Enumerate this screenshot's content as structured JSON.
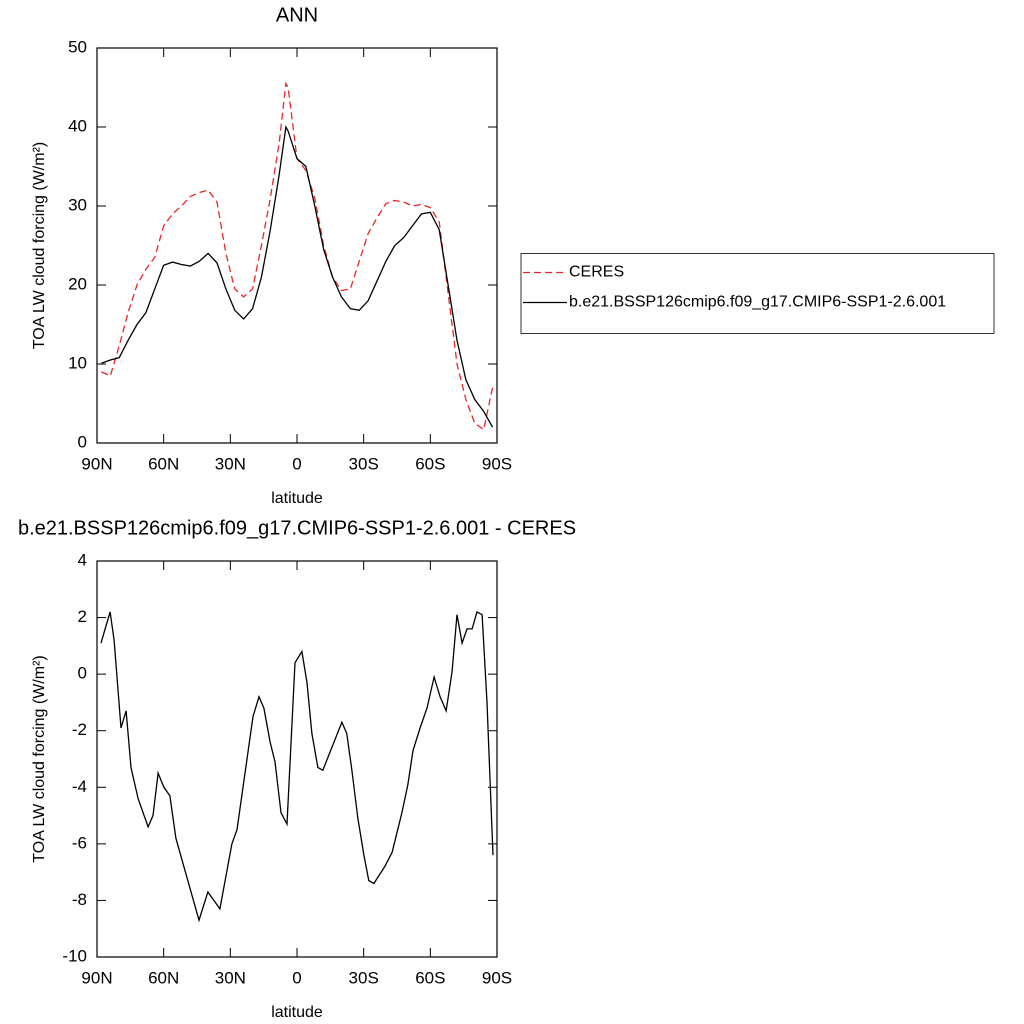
{
  "chart_data": [
    {
      "type": "line",
      "title": "ANN",
      "x_label": "latitude",
      "y_label": "TOA LW cloud forcing (W/m²)",
      "x": [
        88,
        84,
        80,
        76,
        72,
        68,
        64,
        60,
        56,
        52,
        48,
        44,
        40,
        36,
        32,
        28,
        24,
        20,
        16,
        12,
        8,
        5,
        4,
        0,
        -4,
        -8,
        -12,
        -16,
        -20,
        -24,
        -28,
        -32,
        -36,
        -40,
        -44,
        -48,
        -52,
        -56,
        -60,
        -64,
        -68,
        -72,
        -76,
        -80,
        -84,
        -88
      ],
      "series": [
        {
          "name": "CERES",
          "color": "#e8262a",
          "style": "dashed",
          "values": [
            9,
            8.5,
            12.3,
            16.5,
            20,
            22,
            23.5,
            27.5,
            29,
            30,
            31.2,
            31.7,
            32,
            30.5,
            24,
            19.5,
            18.5,
            19.5,
            25,
            31,
            38,
            45.5,
            45,
            36,
            34.5,
            31,
            25,
            21,
            19.3,
            19.5,
            23,
            26.5,
            28.5,
            30.3,
            30.7,
            30.5,
            30,
            30.2,
            29.8,
            28,
            19,
            10,
            5.5,
            2.5,
            1.7,
            7
          ]
        },
        {
          "name": "b.e21.BSSP126cmip6.f09_g17.CMIP6-SSP1-2.6.001",
          "color": "#000000",
          "style": "solid",
          "values": [
            10.1,
            10.5,
            10.8,
            13,
            15,
            16.5,
            19.5,
            22.5,
            22.9,
            22.6,
            22.4,
            23,
            24,
            22.8,
            19.5,
            16.8,
            15.7,
            17,
            21,
            27,
            34,
            40,
            39.5,
            36,
            35,
            30,
            24.5,
            21,
            18.5,
            17,
            16.8,
            18,
            20.5,
            23,
            25,
            26,
            27.5,
            29,
            29.2,
            27,
            20,
            13,
            8,
            5.5,
            4,
            2
          ]
        }
      ],
      "xlim": [
        90,
        -90
      ],
      "xticks": [
        {
          "value": 90,
          "label": "90N"
        },
        {
          "value": 60,
          "label": "60N"
        },
        {
          "value": 30,
          "label": "30N"
        },
        0,
        {
          "value": -30,
          "label": "30S"
        },
        {
          "value": -60,
          "label": "60S"
        },
        {
          "value": -90,
          "label": "90S"
        }
      ],
      "ylim": [
        0,
        50
      ],
      "yticks": [
        0,
        10,
        20,
        30,
        40,
        50
      ],
      "legend": "outside right"
    },
    {
      "type": "line",
      "title": "b.e21.BSSP126cmip6.f09_g17.CMIP6-SSP1-2.6.001 - CERES",
      "x_label": "latitude",
      "y_label": "TOA LW cloud forcing (W/m²)",
      "x": [
        88.2,
        84.1,
        82.3,
        79.2,
        76.9,
        74.7,
        71.5,
        67.0,
        64.8,
        62.5,
        59.9,
        57.2,
        54.5,
        44.1,
        40.1,
        34.7,
        29.3,
        27.0,
        19.8,
        17.1,
        14.9,
        12.1,
        9.9,
        7.2,
        4.5,
        0.9,
        -2.2,
        -4.5,
        -6.7,
        -9.4,
        -11.6,
        -20.2,
        -22.4,
        -24.7,
        -27.4,
        -30.1,
        -32.3,
        -34.6,
        -39.5,
        -42.8,
        -47.2,
        -49.9,
        -52.2,
        -55.4,
        -58.5,
        -61.7,
        -64.4,
        -67.1,
        -69.8,
        -72.0,
        -74.3,
        -76.5,
        -78.8,
        -81.0,
        -83.3,
        -85.5,
        -88.2
      ],
      "series": [
        {
          "color": "#000000",
          "style": "solid",
          "values": [
            1.1,
            2.2,
            1.2,
            -1.9,
            -1.3,
            -3.3,
            -4.4,
            -5.4,
            -5,
            -3.5,
            -4,
            -4.3,
            -5.8,
            -8.7,
            -7.7,
            -8.3,
            -6,
            -5.5,
            -1.5,
            -0.8,
            -1.2,
            -2.4,
            -3.1,
            -4.9,
            -5.3,
            0.4,
            0.8,
            -0.3,
            -2.1,
            -3.3,
            -3.4,
            -1.7,
            -2.1,
            -3.4,
            -5.1,
            -6.4,
            -7.3,
            -7.4,
            -6.8,
            -6.3,
            -4.9,
            -3.9,
            -2.7,
            -1.9,
            -1.2,
            -0.1,
            -0.8,
            -1.3,
            0.1,
            2.1,
            1.1,
            1.6,
            1.6,
            2.2,
            2.1,
            -1,
            -6.4
          ]
        }
      ],
      "xlim": [
        90,
        -90
      ],
      "xticks": [
        {
          "value": 90,
          "label": "90N"
        },
        {
          "value": 60,
          "label": "60N"
        },
        {
          "value": 30,
          "label": "30N"
        },
        0,
        {
          "value": -30,
          "label": "30S"
        },
        {
          "value": -60,
          "label": "60S"
        },
        {
          "value": -90,
          "label": "90S"
        }
      ],
      "ylim": [
        -10,
        4
      ],
      "yticks": [
        -10,
        -8,
        -6,
        -4,
        -2,
        0,
        2,
        4
      ]
    }
  ]
}
